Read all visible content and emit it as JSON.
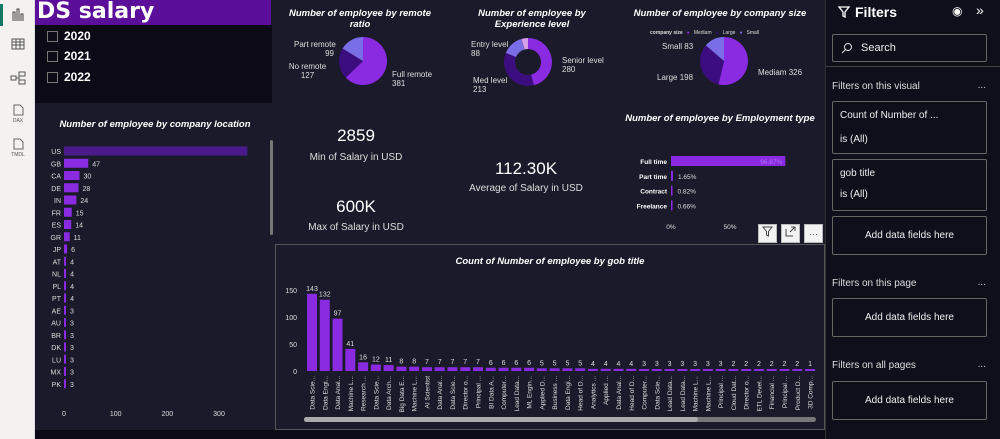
{
  "app": {
    "title": "DS salary Dashboard"
  },
  "leftbar": {
    "icons": [
      "report-view-icon",
      "table-view-icon",
      "model-view-icon",
      "dax-query-icon",
      "tmdl-view-icon"
    ],
    "dax": "DAX",
    "tmdl": "TMDL"
  },
  "slicer": {
    "items": [
      {
        "label": "2020",
        "checked": false
      },
      {
        "label": "2021",
        "checked": false
      },
      {
        "label": "2022",
        "checked": false
      }
    ]
  },
  "colors": {
    "primary": "#8a2be2",
    "dark": "#3c0d7e",
    "light": "#7a6ee6",
    "pink": "#d79ee8",
    "title_bg": "#5b0e9a"
  },
  "cards": {
    "min": {
      "value": "2859",
      "label": "Min of Salary in USD"
    },
    "max": {
      "value": "600K",
      "label": "Max of Salary in USD"
    },
    "avg": {
      "value": "112.30K",
      "label": "Average of Salary in USD"
    }
  },
  "chart_data": [
    {
      "type": "bar",
      "orientation": "horizontal",
      "title": "Number of employee by company location",
      "categories": [
        "US",
        "GB",
        "CA",
        "DE",
        "IN",
        "FR",
        "ES",
        "GR",
        "JP",
        "AT",
        "NL",
        "PL",
        "PT",
        "AE",
        "AU",
        "BR",
        "DK",
        "LU",
        "MX",
        "PK"
      ],
      "values": [
        355,
        47,
        30,
        28,
        24,
        15,
        14,
        11,
        6,
        4,
        4,
        4,
        4,
        3,
        3,
        3,
        3,
        3,
        3,
        3
      ],
      "data_labels": [
        "",
        "47",
        "30",
        "28",
        "24",
        "15",
        "14",
        "11",
        "6",
        "4",
        "4",
        "4",
        "4",
        "3",
        "3",
        "3",
        "3",
        "3",
        "3",
        "3"
      ],
      "xticks": [
        "0",
        "100",
        "200",
        "300"
      ],
      "xlim": [
        0,
        355
      ]
    },
    {
      "type": "pie",
      "title": "Number of employee by remote ratio",
      "slices": [
        {
          "label": "Full remote",
          "value": 381
        },
        {
          "label": "No remote",
          "value": 127
        },
        {
          "label": "Part remote",
          "value": 99
        }
      ]
    },
    {
      "type": "pie",
      "donut": true,
      "title": "Number of employee by Experience level",
      "slices": [
        {
          "label": "Senior level",
          "value": 280
        },
        {
          "label": "Med level",
          "value": 213
        },
        {
          "label": "Entry level",
          "value": 88
        },
        {
          "label": "",
          "value": 26
        }
      ]
    },
    {
      "type": "pie",
      "title": "Number of employee by company size",
      "legend_title": "company size",
      "legend": [
        "Mediam",
        "Large",
        "Small"
      ],
      "slices": [
        {
          "label": "Mediam",
          "value": 326
        },
        {
          "label": "Large",
          "value": 198
        },
        {
          "label": "Small",
          "value": 83
        }
      ]
    },
    {
      "type": "bar",
      "orientation": "horizontal",
      "title": "Number of employee by Employment type",
      "categories": [
        "Full time",
        "Part time",
        "Contract",
        "Freelance"
      ],
      "values": [
        96.87,
        1.65,
        0.82,
        0.66
      ],
      "data_labels": [
        "96.87%",
        "1.65%",
        "0.82%",
        "0.66%"
      ],
      "xticks": [
        "0%",
        "50%"
      ]
    },
    {
      "type": "bar",
      "title": "Count of Number of employee by gob title",
      "categories": [
        "Data Scie...",
        "Data Engi...",
        "Data Anal...",
        "Machine L...",
        "Research ...",
        "Data Scie...",
        "Data Arch...",
        "Big Data E...",
        "Machine L...",
        "AI Scientist",
        "Data Anal...",
        "Data Scie...",
        "Director o...",
        "Principal ...",
        "BI Data A...",
        "Computer...",
        "Lead Data...",
        "ML Engin...",
        "Applied D...",
        "Business ...",
        "Data Engi...",
        "Head of D...",
        "Analytics ...",
        "Applied ...",
        "Data Anal...",
        "Head of D...",
        "Computer...",
        "Data Scie...",
        "Lead Data...",
        "Lead Data...",
        "Machine L...",
        "Machine L...",
        "Principal ...",
        "Cloud Dat...",
        "Director o...",
        "ETL Devel...",
        "Financial ...",
        "Principal ...",
        "Product D...",
        "3D Comp..."
      ],
      "values": [
        143,
        132,
        97,
        41,
        16,
        12,
        11,
        8,
        8,
        7,
        7,
        7,
        7,
        7,
        6,
        6,
        6,
        6,
        5,
        5,
        5,
        5,
        4,
        4,
        4,
        4,
        3,
        3,
        3,
        3,
        3,
        3,
        3,
        2,
        2,
        2,
        2,
        2,
        2,
        1
      ],
      "yticks": [
        "0",
        "50",
        "100",
        "150"
      ],
      "ylim": [
        0,
        150
      ]
    }
  ],
  "filters": {
    "title": "Filters",
    "search_placeholder": "Search",
    "visual_header": "Filters on this visual",
    "page_header": "Filters on this page",
    "all_header": "Filters on all pages",
    "more": "...",
    "cards": [
      {
        "name": "Count of Number of ...",
        "state": "is (All)"
      },
      {
        "name": "gob title",
        "state": "is (All)"
      }
    ],
    "add": "Add data fields here"
  },
  "visual_header": {
    "more": "···"
  }
}
